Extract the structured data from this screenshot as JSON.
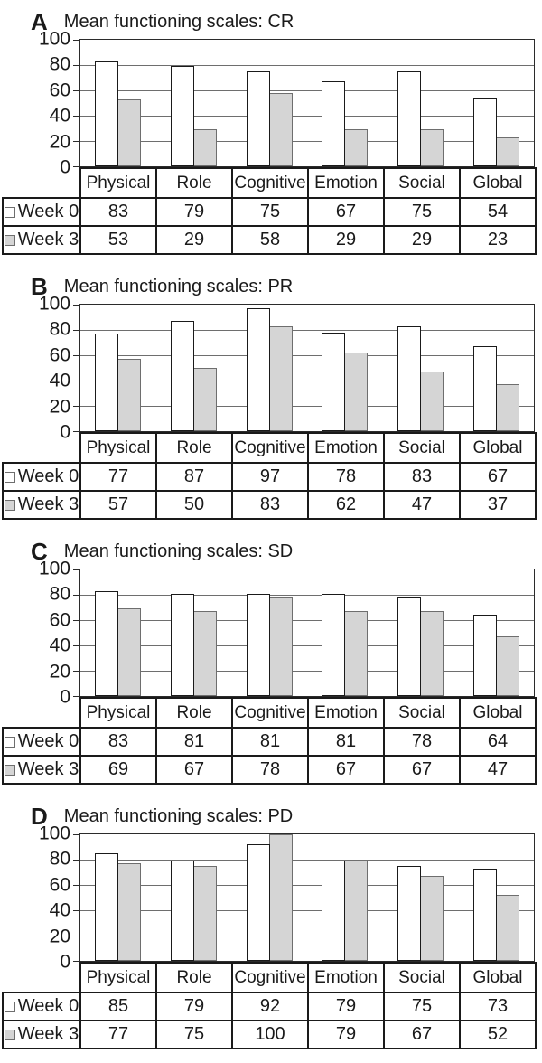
{
  "figure": {
    "categories": [
      "Physical",
      "Role",
      "Cognitive",
      "Emotion",
      "Social",
      "Global"
    ],
    "legend": [
      {
        "label": "Week 0",
        "swatch": "white-square-icon"
      },
      {
        "label": "Week 3",
        "swatch": "gray-square-icon"
      }
    ],
    "colors": {
      "week0_fill": "#ffffff",
      "week0_border": "#1a1a1a",
      "week3_fill": "#d5d5d5",
      "week3_border": "#6e6e6e",
      "gridline": "#6e6e6e",
      "axis": "#2b2b2b",
      "text": "#1a1a1a",
      "background": "#ffffff"
    }
  },
  "chart_data": [
    {
      "type": "bar",
      "panel_label": "A",
      "title": "Mean functioning scales: CR",
      "categories": [
        "Physical",
        "Role",
        "Cognitive",
        "Emotion",
        "Social",
        "Global"
      ],
      "series": [
        {
          "name": "Week 0",
          "values": [
            83,
            79,
            75,
            67,
            75,
            54
          ]
        },
        {
          "name": "Week 3",
          "values": [
            53,
            29,
            58,
            29,
            29,
            23
          ]
        }
      ],
      "xlabel": "",
      "ylabel": "",
      "ylim": [
        0,
        100
      ],
      "yticks": [
        0,
        20,
        40,
        60,
        80,
        100
      ],
      "grid": true,
      "legend_position": "table-left"
    },
    {
      "type": "bar",
      "panel_label": "B",
      "title": "Mean functioning scales: PR",
      "categories": [
        "Physical",
        "Role",
        "Cognitive",
        "Emotion",
        "Social",
        "Global"
      ],
      "series": [
        {
          "name": "Week 0",
          "values": [
            77,
            87,
            97,
            78,
            83,
            67
          ]
        },
        {
          "name": "Week 3",
          "values": [
            57,
            50,
            83,
            62,
            47,
            37
          ]
        }
      ],
      "xlabel": "",
      "ylabel": "",
      "ylim": [
        0,
        100
      ],
      "yticks": [
        0,
        20,
        40,
        60,
        80,
        100
      ],
      "grid": true,
      "legend_position": "table-left"
    },
    {
      "type": "bar",
      "panel_label": "C",
      "title": "Mean functioning scales: SD",
      "categories": [
        "Physical",
        "Role",
        "Cognitive",
        "Emotion",
        "Social",
        "Global"
      ],
      "series": [
        {
          "name": "Week 0",
          "values": [
            83,
            81,
            81,
            81,
            78,
            64
          ]
        },
        {
          "name": "Week 3",
          "values": [
            69,
            67,
            78,
            67,
            67,
            47
          ]
        }
      ],
      "xlabel": "",
      "ylabel": "",
      "ylim": [
        0,
        100
      ],
      "yticks": [
        0,
        20,
        40,
        60,
        80,
        100
      ],
      "grid": true,
      "legend_position": "table-left"
    },
    {
      "type": "bar",
      "panel_label": "D",
      "title": "Mean functioning scales: PD",
      "categories": [
        "Physical",
        "Role",
        "Cognitive",
        "Emotion",
        "Social",
        "Global"
      ],
      "series": [
        {
          "name": "Week 0",
          "values": [
            85,
            79,
            92,
            79,
            75,
            73
          ]
        },
        {
          "name": "Week 3",
          "values": [
            77,
            75,
            100,
            79,
            67,
            52
          ]
        }
      ],
      "xlabel": "",
      "ylabel": "",
      "ylim": [
        0,
        100
      ],
      "yticks": [
        0,
        20,
        40,
        60,
        80,
        100
      ],
      "grid": true,
      "legend_position": "table-left"
    }
  ]
}
